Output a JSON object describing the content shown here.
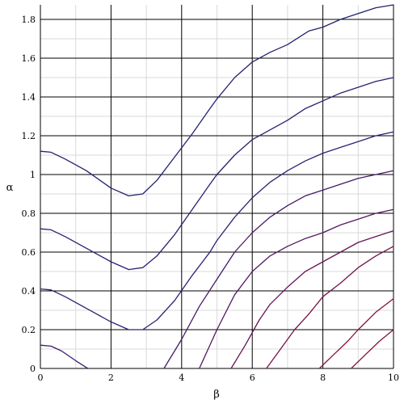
{
  "chart_data": {
    "type": "line",
    "title": "",
    "xlabel": "β",
    "ylabel": "α",
    "xlim": [
      0,
      10
    ],
    "ylim": [
      0,
      1.875
    ],
    "x_ticks": [
      "0",
      "2",
      "4",
      "6",
      "8",
      "10"
    ],
    "x_tick_values": [
      0,
      2,
      4,
      6,
      8,
      10
    ],
    "y_ticks": [
      "0",
      "0.2",
      "0.4",
      "0.6",
      "0.8",
      "1",
      "1.2",
      "1.4",
      "1.6",
      "1.8"
    ],
    "y_tick_values": [
      0,
      0.2,
      0.4,
      0.6,
      0.8,
      1.0,
      1.2,
      1.4,
      1.6,
      1.8
    ],
    "grid": true,
    "major_grid_step": 2,
    "minor_grid_step": 1,
    "colors": {
      "major_grid": "#000000",
      "minor_grid": "#d9d9d9",
      "series_colors": [
        "#22226e",
        "#2a2070",
        "#331e72",
        "#3a1c6e",
        "#441a66",
        "#531860",
        "#641555",
        "#74124a",
        "#85103e"
      ]
    },
    "series": [
      {
        "x": [
          0,
          0.3,
          0.7,
          1.3,
          2.0,
          2.5,
          2.9,
          3.3,
          3.8,
          4.3,
          4.8,
          5.0,
          5.5,
          6.0,
          6.5,
          7.0,
          7.6,
          8.0,
          8.5,
          9.0,
          9.5,
          10
        ],
        "y": [
          1.12,
          1.115,
          1.08,
          1.02,
          0.93,
          0.89,
          0.9,
          0.97,
          1.09,
          1.21,
          1.34,
          1.39,
          1.5,
          1.58,
          1.63,
          1.67,
          1.74,
          1.76,
          1.8,
          1.83,
          1.86,
          1.875
        ]
      },
      {
        "x": [
          0,
          0.3,
          0.7,
          1.3,
          2.0,
          2.5,
          2.9,
          3.3,
          3.8,
          4.3,
          4.8,
          5.0,
          5.5,
          6.0,
          6.5,
          7.0,
          7.5,
          8.0,
          8.5,
          9.0,
          9.5,
          10
        ],
        "y": [
          0.72,
          0.715,
          0.68,
          0.62,
          0.55,
          0.51,
          0.52,
          0.58,
          0.69,
          0.82,
          0.95,
          1.0,
          1.1,
          1.18,
          1.23,
          1.28,
          1.34,
          1.38,
          1.42,
          1.45,
          1.48,
          1.5
        ]
      },
      {
        "x": [
          0,
          0.3,
          0.7,
          1.3,
          2.0,
          2.5,
          2.9,
          3.3,
          3.8,
          4.3,
          4.8,
          5.0,
          5.5,
          6.0,
          6.5,
          7.0,
          7.5,
          8.0,
          8.5,
          9.0,
          9.5,
          10
        ],
        "y": [
          0.41,
          0.405,
          0.37,
          0.31,
          0.24,
          0.2,
          0.2,
          0.25,
          0.35,
          0.48,
          0.6,
          0.66,
          0.78,
          0.88,
          0.96,
          1.02,
          1.07,
          1.11,
          1.14,
          1.17,
          1.2,
          1.22
        ]
      },
      {
        "x": [
          0,
          0.3,
          0.6,
          1.0,
          1.3,
          1.35
        ],
        "y": [
          0.12,
          0.115,
          0.09,
          0.04,
          0.005,
          0
        ]
      },
      {
        "x": [
          3.5,
          4.0,
          4.5,
          5.0,
          5.5,
          6.0,
          6.5,
          7.0,
          7.5,
          8.0,
          8.5,
          9.0,
          9.5,
          10
        ],
        "y": [
          0,
          0.15,
          0.32,
          0.46,
          0.6,
          0.7,
          0.78,
          0.84,
          0.89,
          0.92,
          0.95,
          0.98,
          1.0,
          1.02
        ]
      },
      {
        "x": [
          4.5,
          5.0,
          5.5,
          6.0,
          6.5,
          7.0,
          7.5,
          8.0,
          8.5,
          9.0,
          9.5,
          10
        ],
        "y": [
          0,
          0.2,
          0.38,
          0.5,
          0.58,
          0.63,
          0.67,
          0.7,
          0.74,
          0.77,
          0.8,
          0.82
        ]
      },
      {
        "x": [
          5.4,
          5.8,
          6.2,
          6.5,
          7.0,
          7.5,
          8.0,
          8.5,
          9.0,
          9.5,
          10
        ],
        "y": [
          0,
          0.12,
          0.25,
          0.33,
          0.42,
          0.5,
          0.55,
          0.6,
          0.65,
          0.68,
          0.71
        ]
      },
      {
        "x": [
          6.4,
          6.8,
          7.2,
          7.6,
          8.0,
          8.5,
          9.0,
          9.5,
          10
        ],
        "y": [
          0,
          0.1,
          0.2,
          0.28,
          0.37,
          0.44,
          0.52,
          0.58,
          0.63
        ]
      },
      {
        "x": [
          7.9,
          8.3,
          8.7,
          9.0,
          9.5,
          10
        ],
        "y": [
          0,
          0.07,
          0.14,
          0.2,
          0.29,
          0.36
        ]
      },
      {
        "x": [
          8.8,
          9.2,
          9.6,
          10
        ],
        "y": [
          0,
          0.07,
          0.14,
          0.2
        ]
      }
    ]
  }
}
